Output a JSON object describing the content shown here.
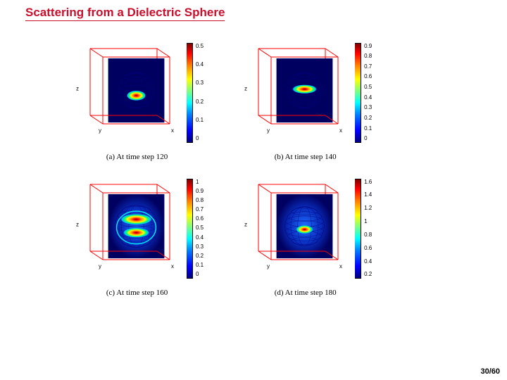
{
  "title": "Scattering from a Dielectric Sphere",
  "page_number": "30/60",
  "axis_labels": {
    "x": "x",
    "y": "y",
    "z": "z"
  },
  "background_color": "#ffffff",
  "title_color": "#c8102e",
  "title_fontsize": 17,
  "caption_fontsize": 11,
  "caption_font": "Times New Roman",
  "colorbar_colormap": "jet",
  "colorbar_gradient": [
    "#00007f",
    "#0000ff",
    "#007fff",
    "#00ffff",
    "#7fff7f",
    "#ffff00",
    "#ff7f00",
    "#ff0000",
    "#7f0000"
  ],
  "panels": [
    {
      "id": "a",
      "caption": "(a) At time step 120",
      "cube_edge_color": "#ff0000",
      "slice_bg_color": "#000060",
      "sphere_wire_color": "#000080",
      "sphere_radius_rel": 0.32,
      "hot_region": {
        "cy_rel": 0.08,
        "w_rel": 0.55,
        "h_rel": 0.18
      },
      "colorbar": {
        "min": 0,
        "max": 0.5,
        "ticks": [
          "0.5",
          "0.4",
          "0.3",
          "0.2",
          "0.1",
          "0"
        ]
      }
    },
    {
      "id": "b",
      "caption": "(b) At time step 140",
      "cube_edge_color": "#ff0000",
      "slice_bg_color": "#000060",
      "sphere_wire_color": "#000080",
      "sphere_radius_rel": 0.32,
      "hot_region": {
        "cy_rel": -0.02,
        "w_rel": 0.7,
        "h_rel": 0.16
      },
      "colorbar": {
        "min": 0,
        "max": 0.9,
        "ticks": [
          "0.9",
          "0.8",
          "0.7",
          "0.6",
          "0.5",
          "0.4",
          "0.3",
          "0.2",
          "0.1",
          "0"
        ]
      }
    },
    {
      "id": "c",
      "caption": "(c) At time step 160",
      "cube_edge_color": "#ff0000",
      "slice_bg_color": "#000060",
      "sphere_wire_color": "#000080",
      "sphere_radius_rel": 0.38,
      "glow": true,
      "hot_region": {
        "cy_rel": 0.02,
        "w_rel": 0.8,
        "h_rel": 0.3,
        "rings": true
      },
      "colorbar": {
        "min": 0,
        "max": 1.0,
        "ticks": [
          "1",
          "0.9",
          "0.8",
          "0.7",
          "0.6",
          "0.5",
          "0.4",
          "0.3",
          "0.2",
          "0.1",
          "0"
        ]
      }
    },
    {
      "id": "d",
      "caption": "(d) At time step 180",
      "cube_edge_color": "#ff0000",
      "slice_bg_color": "#000060",
      "sphere_wire_color": "#000080",
      "sphere_radius_rel": 0.35,
      "glow": true,
      "hot_region": {
        "cy_rel": 0.05,
        "w_rel": 0.45,
        "h_rel": 0.14
      },
      "colorbar": {
        "min": 0,
        "max": 1.6,
        "ticks": [
          "1.6",
          "1.4",
          "1.2",
          "1",
          "0.8",
          "0.6",
          "0.4",
          "0.2"
        ]
      }
    }
  ]
}
